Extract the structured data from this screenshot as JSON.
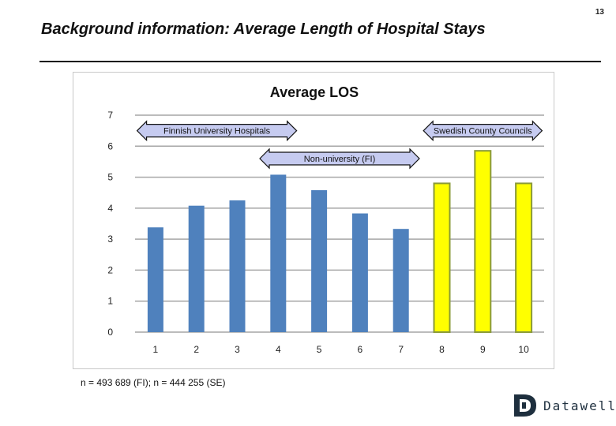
{
  "page": {
    "number": "13",
    "title": "Background information: Average Length of Hospital Stays",
    "footnote": "n = 493 689 (FI); n = 444 255 (SE)",
    "logo_text": "Datawell"
  },
  "chart_data": {
    "type": "bar",
    "title": "Average LOS",
    "ylabel": "",
    "xlabel": "",
    "categories": [
      "1",
      "2",
      "3",
      "4",
      "5",
      "6",
      "7",
      "8",
      "9",
      "10"
    ],
    "values": [
      3.38,
      4.08,
      4.25,
      5.08,
      4.58,
      3.83,
      3.33,
      4.8,
      5.85,
      4.8
    ],
    "bar_colors": [
      "#4f81bd",
      "#4f81bd",
      "#4f81bd",
      "#4f81bd",
      "#4f81bd",
      "#4f81bd",
      "#4f81bd",
      "#ffff00",
      "#ffff00",
      "#ffff00"
    ],
    "ylim": [
      0,
      7
    ],
    "yticks": [
      0,
      1,
      2,
      3,
      4,
      5,
      6,
      7
    ],
    "grid": true,
    "annotations": [
      {
        "text": "Finnish University Hospitals",
        "from": "1",
        "to": "4",
        "y": 6.5
      },
      {
        "text": "Swedish County Councils",
        "from": "8",
        "to": "10",
        "y": 6.5
      },
      {
        "text": "Non-university (FI)",
        "from": "4",
        "to": "7",
        "y": 5.6
      }
    ]
  }
}
